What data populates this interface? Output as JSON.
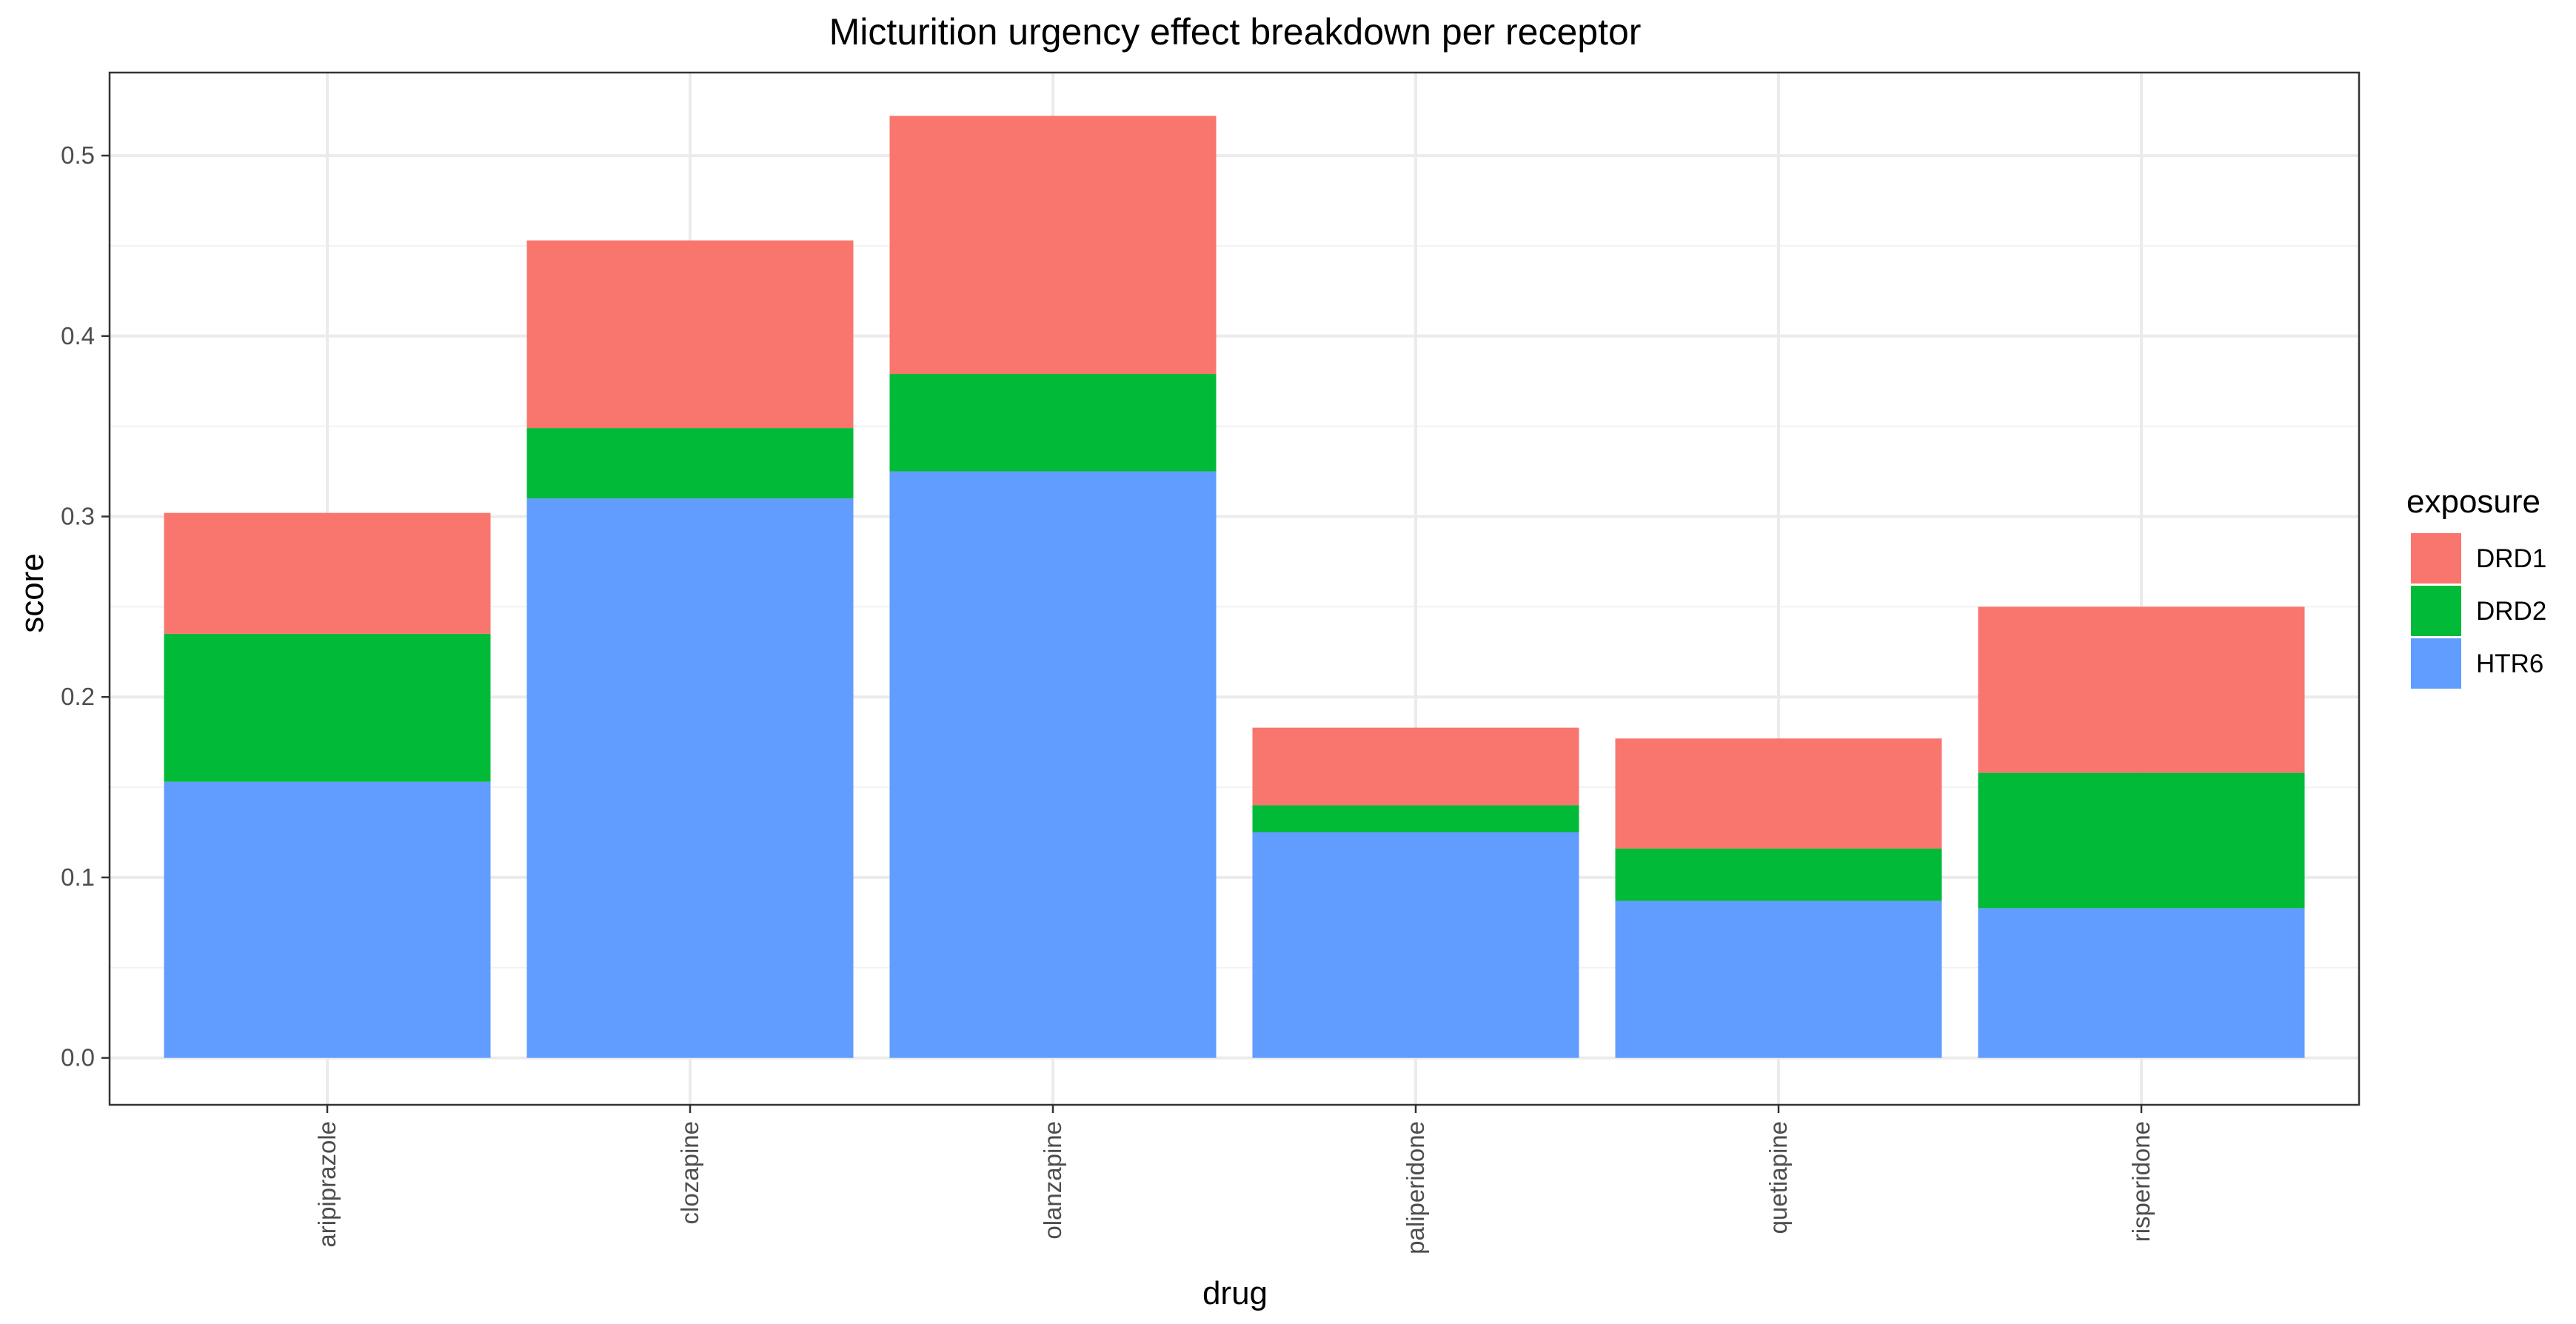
{
  "chart_data": {
    "type": "bar",
    "stacked": true,
    "title": "Micturition urgency effect breakdown per receptor",
    "xlabel": "drug",
    "ylabel": "score",
    "categories": [
      "aripiprazole",
      "clozapine",
      "olanzapine",
      "paliperidone",
      "quetiapine",
      "risperidone"
    ],
    "series": [
      {
        "name": "HTR6",
        "color": "#619CFF",
        "values": [
          0.153,
          0.31,
          0.325,
          0.125,
          0.087,
          0.083
        ]
      },
      {
        "name": "DRD2",
        "color": "#00BA38",
        "values": [
          0.082,
          0.039,
          0.054,
          0.015,
          0.029,
          0.075
        ]
      },
      {
        "name": "DRD1",
        "color": "#F8766D",
        "values": [
          0.067,
          0.104,
          0.143,
          0.043,
          0.061,
          0.092
        ]
      }
    ],
    "ylim": [
      -0.026,
      0.546
    ],
    "yticks": [
      0.0,
      0.1,
      0.2,
      0.3,
      0.4,
      0.5
    ],
    "ytick_labels": [
      "0.0",
      "0.1",
      "0.2",
      "0.3",
      "0.4",
      "0.5"
    ],
    "grid": true,
    "legend": {
      "title": "exposure",
      "position": "right",
      "entries": [
        {
          "label": "DRD1",
          "color": "#F8766D"
        },
        {
          "label": "DRD2",
          "color": "#00BA38"
        },
        {
          "label": "HTR6",
          "color": "#619CFF"
        }
      ]
    }
  }
}
